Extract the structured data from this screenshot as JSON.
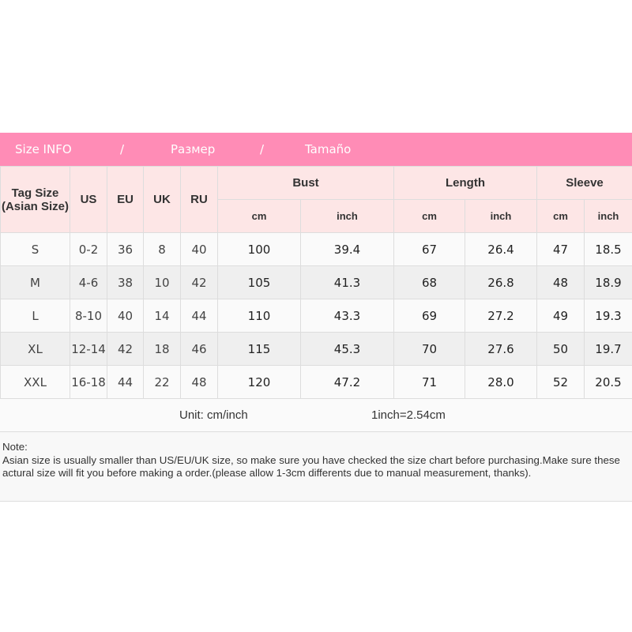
{
  "title_bar": {
    "part1": "Size INFO",
    "sep1": "/",
    "part2": "Размер",
    "sep2": "/",
    "part3": "Tamaño"
  },
  "colors": {
    "title_bg": "#ff8cb6",
    "header_bg": "#fde6e6",
    "row_odd": "#fafafa",
    "row_even": "#efefef"
  },
  "headers": {
    "tag_size": "Tag Size (Asian Size)",
    "us": "US",
    "eu": "EU",
    "uk": "UK",
    "ru": "RU",
    "bust": "Bust",
    "length": "Length",
    "sleeve": "Sleeve",
    "bust_cm": "cm",
    "bust_inch": "inch",
    "length_cm": "cm",
    "length_inch": "inch",
    "sleeve_cm": "cm",
    "sleeve_inch": "inch"
  },
  "rows": [
    [
      "S",
      "0-2",
      "36",
      "8",
      "40",
      "100",
      "39.4",
      "67",
      "26.4",
      "47",
      "18.5"
    ],
    [
      "M",
      "4-6",
      "38",
      "10",
      "42",
      "105",
      "41.3",
      "68",
      "26.8",
      "48",
      "18.9"
    ],
    [
      "L",
      "8-10",
      "40",
      "14",
      "44",
      "110",
      "43.3",
      "69",
      "27.2",
      "49",
      "19.3"
    ],
    [
      "XL",
      "12-14",
      "42",
      "18",
      "46",
      "115",
      "45.3",
      "70",
      "27.6",
      "50",
      "19.7"
    ],
    [
      "XXL",
      "16-18",
      "44",
      "22",
      "48",
      "120",
      "47.2",
      "71",
      "28.0",
      "52",
      "20.5"
    ]
  ],
  "unit": {
    "label": "Unit: cm/inch",
    "conversion": "1inch=2.54cm"
  },
  "note": {
    "heading": "Note:",
    "text": "Asian size is usually smaller than US/EU/UK size, so make sure you have checked the size chart before purchasing.Make sure these actural size will fit you before making a order.(please allow 1-3cm differents due to manual measurement, thanks)."
  }
}
